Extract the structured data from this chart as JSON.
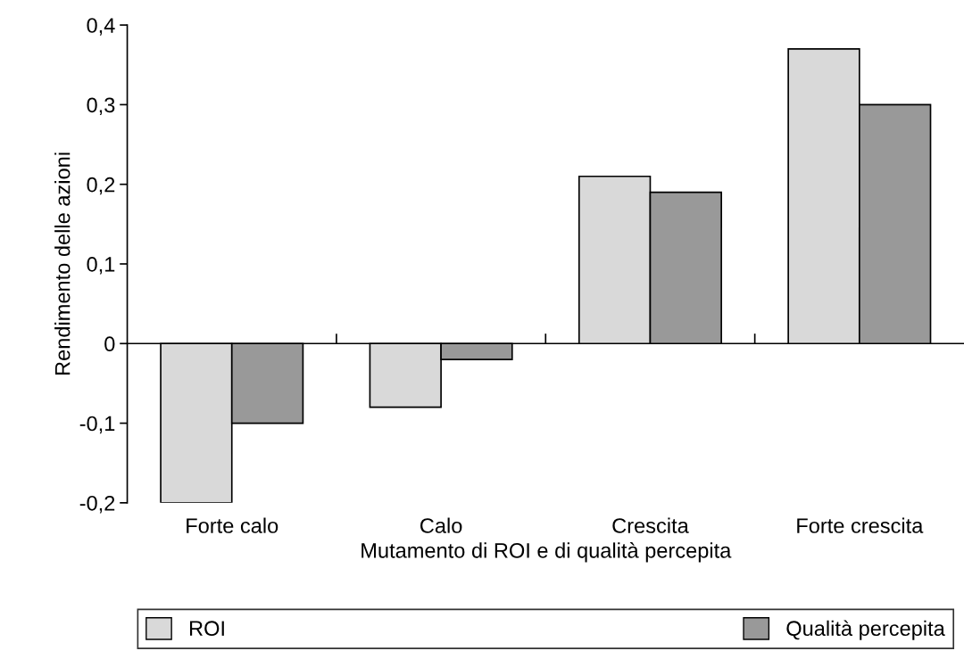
{
  "chart_data": {
    "type": "bar",
    "xlabel": "Mutamento di ROI e di qualità percepita",
    "ylabel": "Rendimento delle azioni",
    "categories": [
      "Forte calo",
      "Calo",
      "Crescita",
      "Forte crescita"
    ],
    "series": [
      {
        "name": "ROI",
        "color": "#d9d9d9",
        "values": [
          -0.2,
          -0.08,
          0.21,
          0.37
        ]
      },
      {
        "name": "Qualità percepita",
        "color": "#999999",
        "values": [
          -0.1,
          -0.02,
          0.19,
          0.3
        ]
      }
    ],
    "ylim": [
      -0.2,
      0.4
    ],
    "yticks": [
      {
        "value": -0.2,
        "label": "-0,2"
      },
      {
        "value": -0.1,
        "label": "-0,1"
      },
      {
        "value": 0,
        "label": "0"
      },
      {
        "value": 0.1,
        "label": "0,1"
      },
      {
        "value": 0.2,
        "label": "0,2"
      },
      {
        "value": 0.3,
        "label": "0,3"
      },
      {
        "value": 0.4,
        "label": "0,4"
      }
    ],
    "legend": "bottom"
  }
}
